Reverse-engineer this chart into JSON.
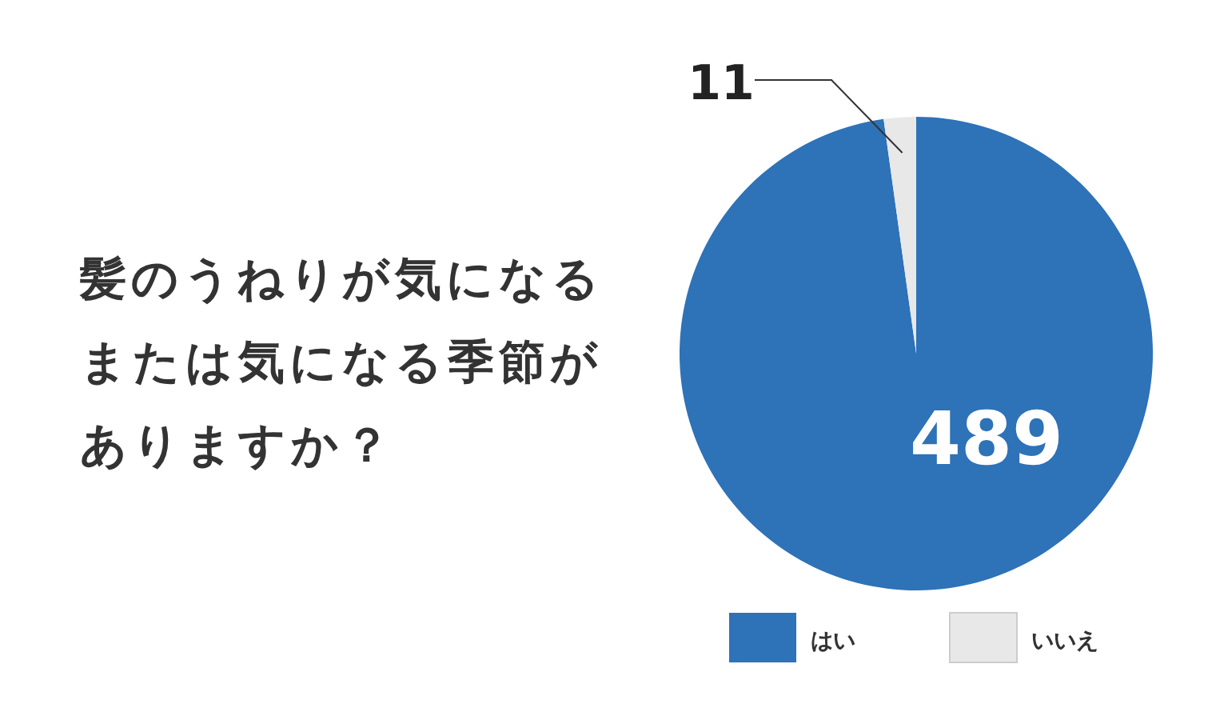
{
  "chart_data": {
    "type": "pie",
    "title": "髪のうねりが気になるまたは気になる季節がありますか？",
    "categories": [
      "はい",
      "いいえ"
    ],
    "values": [
      489,
      11
    ],
    "colors": [
      "#2e72b8",
      "#e8e8e8"
    ],
    "data_labels": true,
    "legend": "bottom"
  }
}
